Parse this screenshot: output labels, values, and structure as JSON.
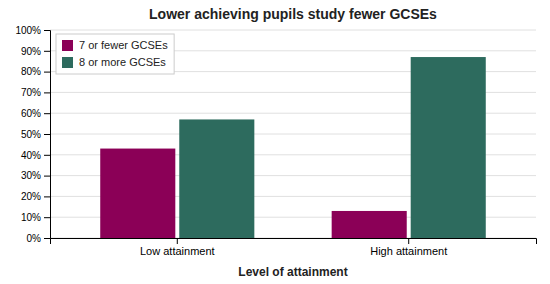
{
  "chart_data": {
    "type": "bar",
    "title": "Lower achieving pupils study fewer GCSEs",
    "xlabel": "Level of attainment",
    "categories": [
      "Low attainment",
      "High attainment"
    ],
    "series": [
      {
        "name": "7 or fewer GCSEs",
        "color": "#8B0057",
        "values": [
          43,
          13
        ]
      },
      {
        "name": "8 or more GCSEs",
        "color": "#2D6B5E",
        "values": [
          57,
          87
        ]
      }
    ],
    "ylim": [
      0,
      100
    ],
    "yticks": [
      {
        "value": 0,
        "label": "0%"
      },
      {
        "value": 10,
        "label": "10%"
      },
      {
        "value": 20,
        "label": "20%"
      },
      {
        "value": 30,
        "label": "30%"
      },
      {
        "value": 40,
        "label": "40%"
      },
      {
        "value": 50,
        "label": "50%"
      },
      {
        "value": 60,
        "label": "60%"
      },
      {
        "value": 70,
        "label": "70%"
      },
      {
        "value": 80,
        "label": "80%"
      },
      {
        "value": 90,
        "label": "90%"
      },
      {
        "value": 100,
        "label": "100%"
      }
    ],
    "grid": true,
    "legend": "upper left",
    "tick_labels": true
  }
}
